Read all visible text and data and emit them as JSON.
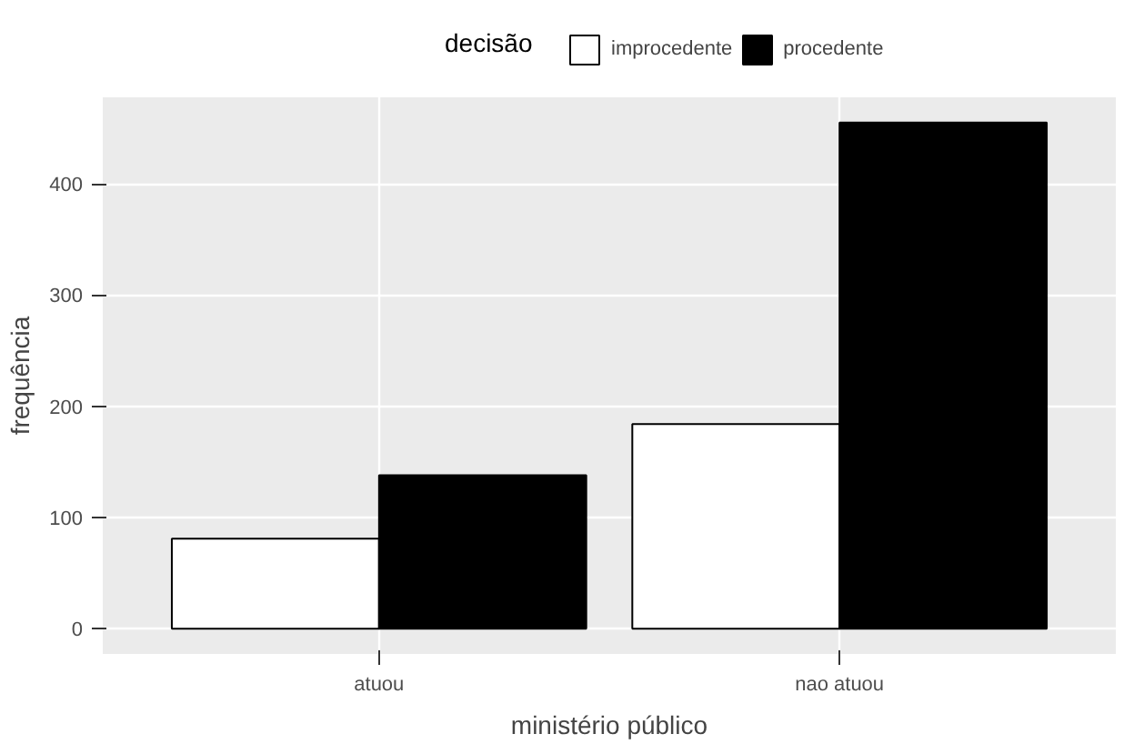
{
  "chart_data": {
    "type": "bar",
    "xlabel": "ministério público",
    "ylabel": "frequência",
    "legend_title": "decisão",
    "categories": [
      "atuou",
      "nao atuou"
    ],
    "series": [
      {
        "name": "improcedente",
        "color": "#ffffff",
        "values": [
          81,
          184
        ]
      },
      {
        "name": "procedente",
        "color": "#000000",
        "values": [
          138,
          455
        ]
      }
    ],
    "ylim": [
      -22.75,
      477.75
    ],
    "yticks": [
      0,
      100,
      200,
      300,
      400
    ],
    "grid": true,
    "legend": "top"
  }
}
